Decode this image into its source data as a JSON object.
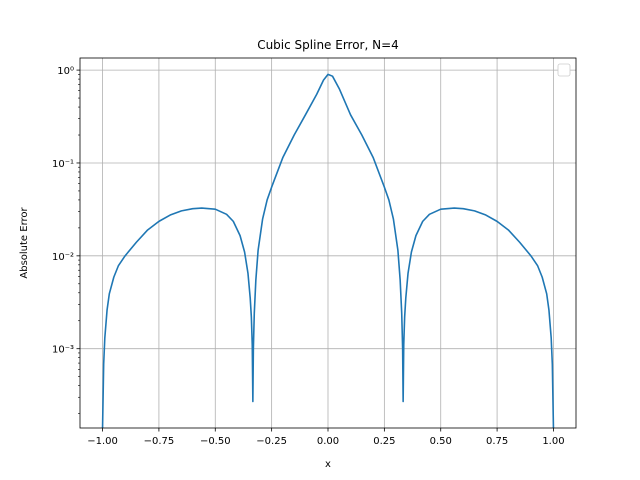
{
  "chart_data": {
    "type": "line",
    "title": "Cubic Spline Error, N=4",
    "xlabel": "x",
    "ylabel": "Absolute Error",
    "xlim": [
      -1.1,
      1.1
    ],
    "ylim": [
      0.00014,
      1.35
    ],
    "yscale": "log",
    "grid": true,
    "legend": {
      "placement": "top-right",
      "entries": []
    },
    "x_ticks": [
      -1.0,
      -0.75,
      -0.5,
      -0.25,
      0.0,
      0.25,
      0.5,
      0.75,
      1.0
    ],
    "x_tick_labels": [
      "−1.00",
      "−0.75",
      "−0.50",
      "−0.25",
      "0.00",
      "0.25",
      "0.50",
      "0.75",
      "1.00"
    ],
    "y_ticks": [
      0.001,
      0.01,
      0.1,
      1
    ],
    "y_tick_labels": [
      "10⁻³",
      "10⁻²",
      "10⁻¹",
      "10⁰"
    ],
    "series": [
      {
        "color": "#1f77b4",
        "x": [
          -1.0,
          -0.995,
          -0.99,
          -0.98,
          -0.97,
          -0.95,
          -0.93,
          -0.9,
          -0.85,
          -0.8,
          -0.75,
          -0.7,
          -0.65,
          -0.6,
          -0.56,
          -0.5,
          -0.45,
          -0.42,
          -0.39,
          -0.37,
          -0.355,
          -0.345,
          -0.34,
          -0.336,
          -0.3333,
          -0.331,
          -0.327,
          -0.32,
          -0.31,
          -0.29,
          -0.27,
          -0.25,
          -0.2,
          -0.15,
          -0.1,
          -0.05,
          -0.02,
          0.0,
          0.02,
          0.05,
          0.1,
          0.15,
          0.2,
          0.25,
          0.27,
          0.29,
          0.31,
          0.32,
          0.327,
          0.331,
          0.3333,
          0.336,
          0.34,
          0.345,
          0.355,
          0.37,
          0.39,
          0.42,
          0.45,
          0.5,
          0.56,
          0.6,
          0.65,
          0.7,
          0.75,
          0.8,
          0.85,
          0.9,
          0.93,
          0.95,
          0.97,
          0.98,
          0.99,
          0.995,
          1.0
        ],
        "y": [
          0.00014,
          0.00068,
          0.0013,
          0.0026,
          0.0039,
          0.0059,
          0.0078,
          0.01,
          0.014,
          0.019,
          0.0235,
          0.0275,
          0.0305,
          0.0322,
          0.0327,
          0.0318,
          0.028,
          0.0235,
          0.0165,
          0.011,
          0.0065,
          0.0035,
          0.0022,
          0.0011,
          0.00027,
          0.001,
          0.0024,
          0.0055,
          0.0115,
          0.025,
          0.04,
          0.055,
          0.115,
          0.2,
          0.33,
          0.55,
          0.78,
          0.9,
          0.86,
          0.63,
          0.33,
          0.2,
          0.115,
          0.055,
          0.04,
          0.025,
          0.0115,
          0.0055,
          0.0024,
          0.001,
          0.00027,
          0.0011,
          0.0022,
          0.0035,
          0.0065,
          0.011,
          0.0165,
          0.0235,
          0.028,
          0.0318,
          0.0327,
          0.0322,
          0.0305,
          0.0275,
          0.0235,
          0.019,
          0.014,
          0.01,
          0.0078,
          0.0059,
          0.0039,
          0.0026,
          0.0013,
          0.00068,
          0.00014
        ]
      }
    ]
  }
}
